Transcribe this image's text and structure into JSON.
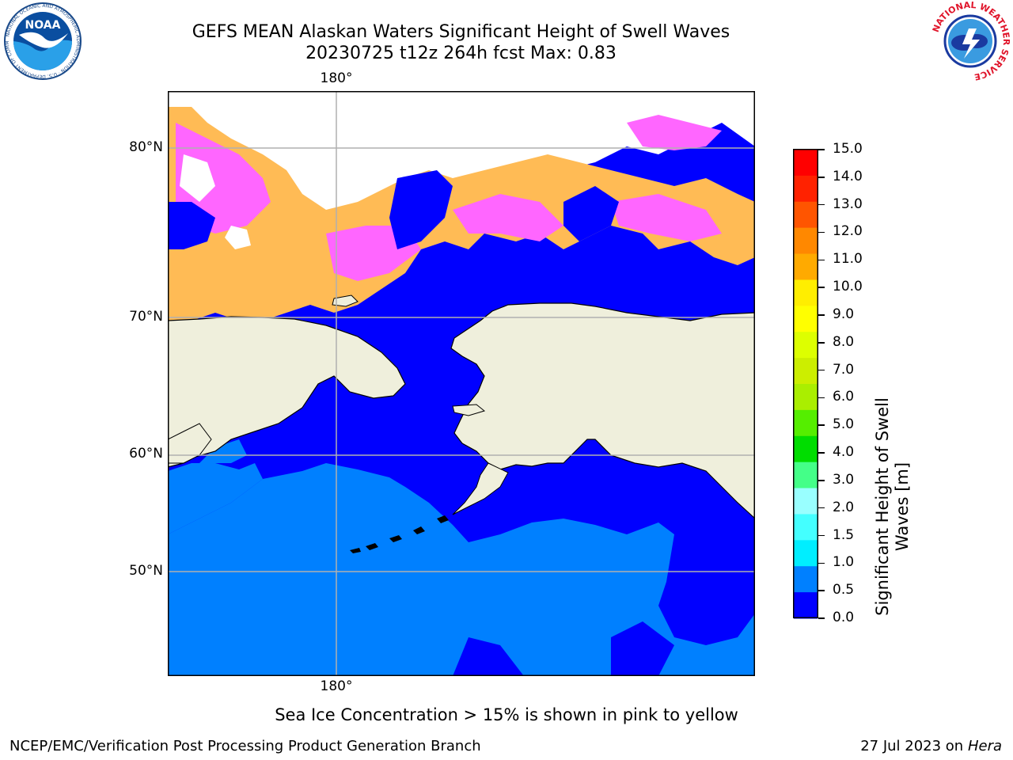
{
  "header": {
    "title_line1": "GEFS MEAN Alaskan Waters Significant Height of Swell Waves",
    "title_line2": "20230725 t12z 264h fcst   Max: 0.83"
  },
  "logos": {
    "left": {
      "name": "noaa-logo",
      "text": "NOAA",
      "ring_text": "NATIONAL OCEANIC AND ATMOSPHERIC ADMINISTRATION · U.S. DEPARTMENT OF COMMERCE"
    },
    "right": {
      "name": "nws-logo",
      "ring_text": "NATIONAL WEATHER SERVICE"
    }
  },
  "map": {
    "lat_labels": [
      "80°N",
      "70°N",
      "60°N",
      "50°N"
    ],
    "lon_label_top": "180°",
    "lon_label_bottom": "180°",
    "colors": {
      "land": "#efefdc",
      "ocean_low": "#0000ff",
      "ocean_mid": "#0080ff",
      "ice_pink": "#ff66ff",
      "ice_orange": "#ffbb55",
      "ice_yellow": "#ffdd44",
      "grid": "#b0b0b0"
    }
  },
  "colorbar": {
    "label": "Significant Height of Swell Waves [m]",
    "label_line1": "Significant Height of Swell",
    "label_line2": "Waves [m]",
    "ticks": [
      "15.0",
      "14.0",
      "13.0",
      "12.0",
      "11.0",
      "10.0",
      "9.0",
      "8.0",
      "7.0",
      "6.0",
      "5.0",
      "4.0",
      "3.0",
      "2.0",
      "1.5",
      "1.0",
      "0.5",
      "0.0"
    ],
    "colors_top_to_bottom": [
      "#ff0000",
      "#ff2200",
      "#ff5500",
      "#ff8800",
      "#ffaa00",
      "#ffee00",
      "#ffff00",
      "#ddff00",
      "#ccee00",
      "#aaee00",
      "#55ee00",
      "#00dd00",
      "#44ff88",
      "#99ffff",
      "#44ffff",
      "#00eeff",
      "#0080ff",
      "#0000ff"
    ]
  },
  "notes": {
    "sea_ice": "Sea Ice Concentration > 15% is shown in pink to yellow"
  },
  "footer": {
    "left": "NCEP/EMC/Verification Post Processing Product Generation Branch",
    "right_prefix": "27 Jul 2023 on ",
    "right_machine": "Hera"
  }
}
